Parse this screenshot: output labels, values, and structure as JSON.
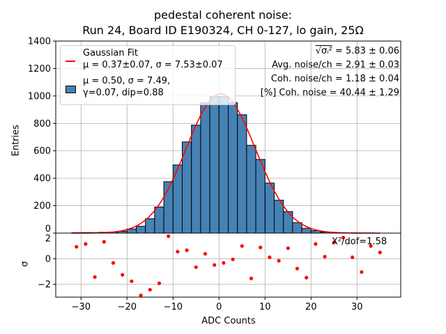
{
  "chart_data": [
    {
      "type": "bar",
      "panel": "histogram",
      "title_line1": "pedestal coherent noise:",
      "title_line2": "Run 24, Board ID E190324, CH 0-127, lo gain, 25Ω",
      "xlabel": "",
      "ylabel": "Entries",
      "xlim": [
        -35.5,
        39.5
      ],
      "ylim": [
        0,
        1400
      ],
      "yticks": [
        0,
        200,
        400,
        600,
        800,
        1000,
        1200,
        1400
      ],
      "grid": true,
      "bin_width": 2,
      "bin_centers": [
        -31,
        -29,
        -27,
        -25,
        -23,
        -21,
        -19,
        -17,
        -15,
        -13,
        -11,
        -9,
        -7,
        -5,
        -3,
        -1,
        1,
        3,
        5,
        7,
        9,
        11,
        13,
        15,
        17,
        19,
        21,
        23,
        25,
        27,
        29,
        31,
        33
      ],
      "values": [
        3,
        4,
        4,
        6,
        8,
        13,
        30,
        50,
        105,
        190,
        375,
        497,
        665,
        787,
        950,
        995,
        995,
        950,
        863,
        640,
        537,
        365,
        240,
        157,
        76,
        35,
        18,
        8,
        5,
        3,
        2,
        1,
        1
      ],
      "bar_color": "#4682b4",
      "fit": {
        "name": "Gaussian Fit",
        "mu": 0.37,
        "sigma": 7.53,
        "amplitude": 1015,
        "x_range": [
          -32,
          35
        ],
        "color": "#ff0000"
      },
      "legend": {
        "placement": "top-left",
        "entries": [
          {
            "label_line1": "Gaussian Fit",
            "label_line2": "μ = 0.37±0.07, σ = 7.53±0.07",
            "marker": "line",
            "color": "#ff0000"
          },
          {
            "label_line1": "μ = 0.50, σ = 7.49,",
            "label_line2": "γ=0.07, dip=0.88",
            "marker": "patch",
            "color": "#4682b4"
          }
        ]
      },
      "annotations": [
        {
          "prefix": "√σᵢ²",
          "text": " = 5.83 ± 0.06"
        },
        {
          "text": "Avg. noise/ch = 2.91 ± 0.03"
        },
        {
          "text": "Coh. noise/ch = 1.18 ± 0.04"
        },
        {
          "text": "[%] Coh. noise = 40.44  ± 1.29"
        }
      ]
    },
    {
      "type": "scatter",
      "panel": "residuals",
      "xlabel": "ADC Counts",
      "ylabel": "σ",
      "xlim": [
        -35.5,
        39.5
      ],
      "ylim": [
        -3,
        2
      ],
      "xticks": [
        -30,
        -20,
        -10,
        0,
        10,
        20,
        30
      ],
      "yticks": [
        -2,
        0,
        2
      ],
      "grid": true,
      "color": "#ff0000",
      "x": [
        -31,
        -29,
        -27,
        -25,
        -23,
        -21,
        -19,
        -17,
        -15,
        -13,
        -11,
        -9,
        -7,
        -5,
        -3,
        -1,
        1,
        3,
        5,
        7,
        9,
        11,
        13,
        15,
        17,
        19,
        21,
        23,
        25,
        27,
        29,
        31,
        33,
        35
      ],
      "y": [
        0.93,
        1.15,
        -1.43,
        1.32,
        -0.33,
        -1.26,
        -1.76,
        -2.86,
        -2.42,
        -1.92,
        1.76,
        0.55,
        0.66,
        -0.66,
        0.38,
        -0.49,
        -0.33,
        -0.05,
        0.99,
        -1.54,
        0.88,
        0.11,
        -0.16,
        0.82,
        -0.77,
        -1.48,
        1.15,
        0.16,
        1.27,
        1.65,
        0.11,
        -1.04,
        0.99,
        0.49
      ],
      "annotation": "X²/dof=1.58"
    }
  ]
}
